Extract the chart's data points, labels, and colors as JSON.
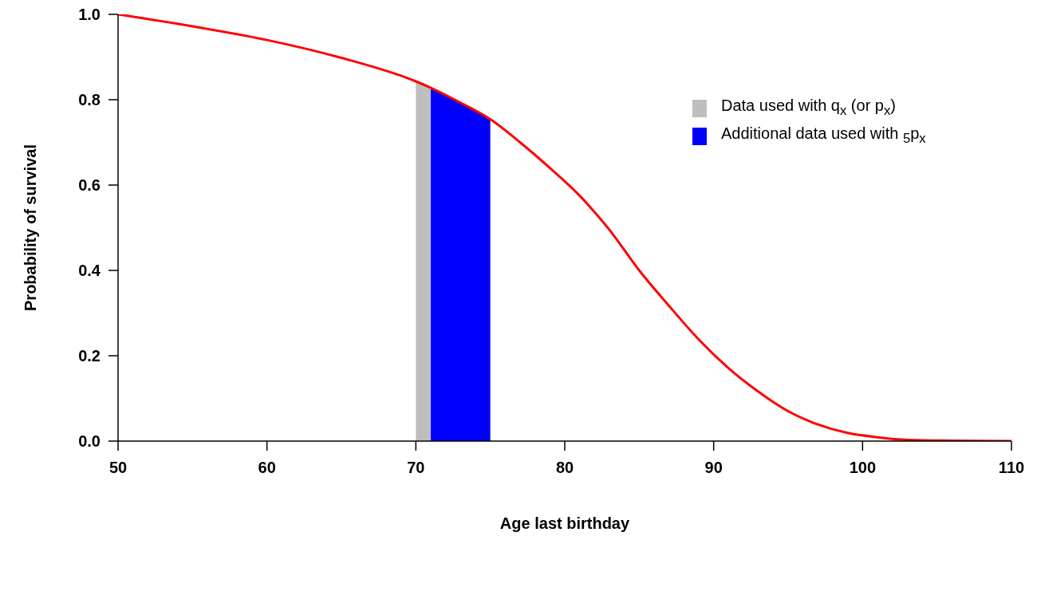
{
  "chart_data": {
    "type": "line",
    "xlabel": "Age last birthday",
    "ylabel": "Probability of survival",
    "xlim": [
      50,
      110
    ],
    "xticks": [
      50,
      60,
      70,
      80,
      90,
      100,
      110
    ],
    "ylim": [
      0,
      1
    ],
    "yticks": [
      {
        "value": 0,
        "label": "0.0"
      },
      {
        "value": 0.2,
        "label": "0.2"
      },
      {
        "value": 0.4,
        "label": "0.4"
      },
      {
        "value": 0.6,
        "label": "0.6"
      },
      {
        "value": 0.8,
        "label": "0.8"
      },
      {
        "value": 1,
        "label": "1.0"
      }
    ],
    "grid": false,
    "legend": "top right",
    "series": [
      {
        "type": "area",
        "name": "Data used with q$_{x}$ (or p$_{x}$)",
        "color": "#bebebe",
        "x": [
          70,
          71
        ],
        "values": [
          0.843,
          0.828
        ]
      },
      {
        "type": "area",
        "name": "Additional data used with $_{5}$p$_{x}$",
        "color": "#0000ff",
        "x": [
          71,
          73,
          75
        ],
        "values": [
          0.828,
          0.793,
          0.754
        ]
      },
      {
        "color": "#ff0000",
        "x": [
          50,
          55,
          60,
          65,
          70,
          71,
          73,
          75,
          77,
          79,
          81,
          83,
          85,
          87,
          89,
          91,
          93,
          95,
          97,
          99,
          101,
          103,
          106,
          110
        ],
        "values": [
          1.0,
          0.972,
          0.94,
          0.898,
          0.843,
          0.828,
          0.793,
          0.754,
          0.7,
          0.64,
          0.575,
          0.495,
          0.4,
          0.317,
          0.238,
          0.171,
          0.116,
          0.07,
          0.039,
          0.019,
          0.009,
          0.003,
          0.001,
          0
        ]
      }
    ]
  }
}
